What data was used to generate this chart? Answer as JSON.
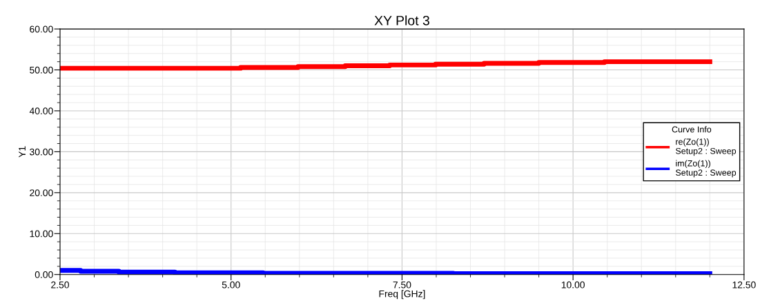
{
  "chart_data": {
    "type": "step",
    "title": "XY Plot 3",
    "xlabel": "Freq [GHz]",
    "ylabel": "Y1",
    "legend_title": "Curve Info",
    "series": [
      {
        "name": "re(Zo(1))\nSetup2 : Sweep",
        "color": "#ff0000",
        "x": [
          2.5,
          5.14,
          5.98,
          6.67,
          7.32,
          7.99,
          8.7,
          9.5,
          10.46,
          12.0
        ],
        "values": [
          50.4,
          50.6,
          50.8,
          51.0,
          51.2,
          51.4,
          51.6,
          51.8,
          52.0,
          52.0
        ]
      },
      {
        "name": "im(Zo(1))\nSetup2 : Sweep",
        "color": "#0000ff",
        "x": [
          2.5,
          2.8,
          3.36,
          4.18,
          5.47,
          8.25,
          12.0
        ],
        "values": [
          1.0,
          0.8,
          0.6,
          0.4,
          0.3,
          0.2,
          0.2
        ]
      }
    ],
    "xlim": [
      2.5,
      12.5
    ],
    "ylim": [
      0,
      60
    ],
    "xticks": [
      {
        "value": 2.5,
        "label": "2.50"
      },
      {
        "value": 5,
        "label": "5.00"
      },
      {
        "value": 7.5,
        "label": "7.50"
      },
      {
        "value": 10,
        "label": "10.00"
      },
      {
        "value": 12.5,
        "label": "12.50"
      }
    ],
    "yticks": [
      {
        "value": 0,
        "label": "0.00"
      },
      {
        "value": 10,
        "label": "10.00"
      },
      {
        "value": 20,
        "label": "20.00"
      },
      {
        "value": 30,
        "label": "30.00"
      },
      {
        "value": 40,
        "label": "40.00"
      },
      {
        "value": 50,
        "label": "50.00"
      },
      {
        "value": 60,
        "label": "60.00"
      }
    ],
    "grid": true,
    "legend": "right",
    "line_style": "solid"
  }
}
